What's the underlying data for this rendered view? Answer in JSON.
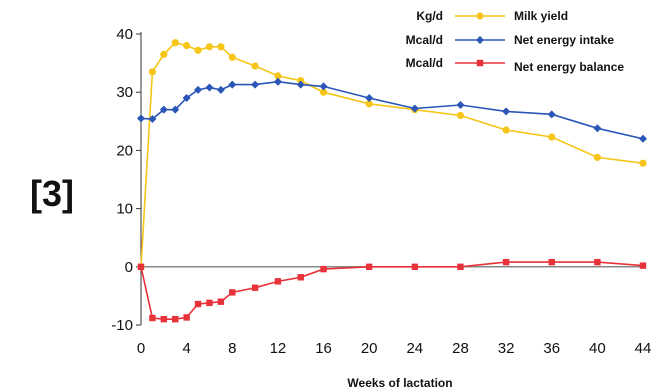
{
  "panel_label": "[3]",
  "chart_data": {
    "type": "line",
    "xlabel": "Weeks of lactation",
    "ylabel": "",
    "xlim": [
      0,
      44
    ],
    "ylim": [
      -10,
      40
    ],
    "xticks": [
      0,
      4,
      8,
      12,
      16,
      20,
      24,
      28,
      32,
      36,
      40,
      44
    ],
    "yticks": [
      -10,
      0,
      10,
      20,
      30,
      40
    ],
    "legend_position": "top-right",
    "series": [
      {
        "name": "Milk yield",
        "unit": "Kg/d",
        "color": "#f5c518",
        "marker": "circle",
        "points": [
          [
            0,
            0
          ],
          [
            1,
            33.5
          ],
          [
            2,
            36.5
          ],
          [
            3,
            38.5
          ],
          [
            4,
            38
          ],
          [
            5,
            37.2
          ],
          [
            6,
            37.8
          ],
          [
            7,
            37.8
          ],
          [
            8,
            36
          ],
          [
            10,
            34.5
          ],
          [
            12,
            32.8
          ],
          [
            14,
            32
          ],
          [
            16,
            30
          ],
          [
            20,
            28
          ],
          [
            24,
            27
          ],
          [
            28,
            26
          ],
          [
            32,
            23.5
          ],
          [
            36,
            22.3
          ],
          [
            40,
            18.8
          ],
          [
            44,
            17.8
          ]
        ]
      },
      {
        "name": "Net energy intake",
        "unit": "Mcal/d",
        "color": "#2a56b8",
        "marker": "diamond",
        "points": [
          [
            0,
            25.5
          ],
          [
            1,
            25.4
          ],
          [
            2,
            27
          ],
          [
            3,
            27
          ],
          [
            4,
            29
          ],
          [
            5,
            30.4
          ],
          [
            6,
            30.8
          ],
          [
            7,
            30.4
          ],
          [
            8,
            31.3
          ],
          [
            10,
            31.3
          ],
          [
            12,
            31.8
          ],
          [
            14,
            31.3
          ],
          [
            16,
            31
          ],
          [
            20,
            29
          ],
          [
            24,
            27.2
          ],
          [
            28,
            27.8
          ],
          [
            32,
            26.7
          ],
          [
            36,
            26.2
          ],
          [
            40,
            23.8
          ],
          [
            44,
            22
          ]
        ]
      },
      {
        "name": "Net energy balance",
        "unit": "Mcal/d",
        "color": "#e8323a",
        "marker": "square",
        "points": [
          [
            0,
            0
          ],
          [
            1,
            -8.8
          ],
          [
            2,
            -9
          ],
          [
            3,
            -9
          ],
          [
            4,
            -8.7
          ],
          [
            5,
            -6.4
          ],
          [
            6,
            -6.2
          ],
          [
            7,
            -6
          ],
          [
            8,
            -4.4
          ],
          [
            10,
            -3.6
          ],
          [
            12,
            -2.5
          ],
          [
            14,
            -1.8
          ],
          [
            16,
            -0.4
          ],
          [
            20,
            0
          ],
          [
            24,
            0
          ],
          [
            28,
            0
          ],
          [
            32,
            0.8
          ],
          [
            36,
            0.8
          ],
          [
            40,
            0.8
          ],
          [
            44,
            0.2
          ]
        ]
      }
    ]
  }
}
